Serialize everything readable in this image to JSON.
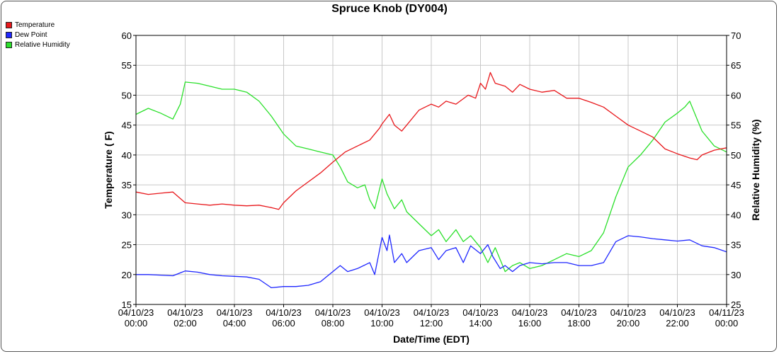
{
  "chart_data": {
    "type": "line",
    "title": "Spruce Knob (DY004)",
    "xlabel": "Date/Time (EDT)",
    "ylabel_left": "Temperature ( F)",
    "ylabel_right": "Relative Humidity (%)",
    "ylim_left": [
      15,
      60
    ],
    "ylim_right": [
      25,
      70
    ],
    "xlim_hours": [
      0,
      24
    ],
    "grid": true,
    "legend_position": "top-left",
    "x_ticks": [
      {
        "date": "04/10/23",
        "time": "00:00"
      },
      {
        "date": "04/10/23",
        "time": "02:00"
      },
      {
        "date": "04/10/23",
        "time": "04:00"
      },
      {
        "date": "04/10/23",
        "time": "06:00"
      },
      {
        "date": "04/10/23",
        "time": "08:00"
      },
      {
        "date": "04/10/23",
        "time": "10:00"
      },
      {
        "date": "04/10/23",
        "time": "12:00"
      },
      {
        "date": "04/10/23",
        "time": "14:00"
      },
      {
        "date": "04/10/23",
        "time": "16:00"
      },
      {
        "date": "04/10/23",
        "time": "18:00"
      },
      {
        "date": "04/10/23",
        "time": "20:00"
      },
      {
        "date": "04/10/23",
        "time": "22:00"
      },
      {
        "date": "04/11/23",
        "time": "00:00"
      }
    ],
    "y_ticks_left": [
      "15",
      "20",
      "25",
      "30",
      "35",
      "40",
      "45",
      "50",
      "55",
      "60"
    ],
    "y_ticks_right": [
      "25",
      "30",
      "35",
      "40",
      "45",
      "50",
      "55",
      "60",
      "65",
      "70"
    ],
    "series": [
      {
        "name": "Temperature",
        "color": "#e8171b",
        "axis": "left",
        "points": [
          [
            0,
            33.8
          ],
          [
            0.5,
            33.4
          ],
          [
            1,
            33.6
          ],
          [
            1.5,
            33.8
          ],
          [
            2,
            32.0
          ],
          [
            2.5,
            31.8
          ],
          [
            3,
            31.6
          ],
          [
            3.5,
            31.8
          ],
          [
            4,
            31.6
          ],
          [
            4.5,
            31.5
          ],
          [
            5,
            31.6
          ],
          [
            5.5,
            31.2
          ],
          [
            5.8,
            30.9
          ],
          [
            6,
            32.0
          ],
          [
            6.5,
            34.0
          ],
          [
            7,
            35.5
          ],
          [
            7.5,
            37.0
          ],
          [
            8,
            38.8
          ],
          [
            8.5,
            40.5
          ],
          [
            9,
            41.5
          ],
          [
            9.5,
            42.5
          ],
          [
            9.9,
            44.5
          ],
          [
            10,
            45.2
          ],
          [
            10.3,
            46.8
          ],
          [
            10.5,
            45.0
          ],
          [
            10.8,
            44.0
          ],
          [
            11,
            45.0
          ],
          [
            11.5,
            47.5
          ],
          [
            12,
            48.5
          ],
          [
            12.3,
            48.0
          ],
          [
            12.6,
            49.0
          ],
          [
            13,
            48.5
          ],
          [
            13.5,
            50.0
          ],
          [
            13.8,
            49.5
          ],
          [
            14,
            52.0
          ],
          [
            14.2,
            51.0
          ],
          [
            14.4,
            53.8
          ],
          [
            14.6,
            52.0
          ],
          [
            15,
            51.5
          ],
          [
            15.3,
            50.5
          ],
          [
            15.6,
            51.8
          ],
          [
            16,
            51.0
          ],
          [
            16.5,
            50.5
          ],
          [
            17,
            50.8
          ],
          [
            17.5,
            49.5
          ],
          [
            18,
            49.5
          ],
          [
            18.5,
            48.8
          ],
          [
            19,
            48.0
          ],
          [
            19.5,
            46.5
          ],
          [
            20,
            45.0
          ],
          [
            20.5,
            44.0
          ],
          [
            21,
            43.0
          ],
          [
            21.5,
            41.0
          ],
          [
            22,
            40.2
          ],
          [
            22.5,
            39.5
          ],
          [
            22.8,
            39.2
          ],
          [
            23,
            40.0
          ],
          [
            23.5,
            40.8
          ],
          [
            24,
            41.2
          ]
        ]
      },
      {
        "name": "Dew Point",
        "color": "#1f27ff",
        "axis": "left",
        "points": [
          [
            0,
            20.0
          ],
          [
            0.5,
            20.0
          ],
          [
            1,
            19.9
          ],
          [
            1.5,
            19.8
          ],
          [
            2,
            20.6
          ],
          [
            2.5,
            20.4
          ],
          [
            3,
            20.0
          ],
          [
            3.5,
            19.8
          ],
          [
            4,
            19.7
          ],
          [
            4.5,
            19.6
          ],
          [
            5,
            19.2
          ],
          [
            5.5,
            17.8
          ],
          [
            6,
            18.0
          ],
          [
            6.5,
            18.0
          ],
          [
            7,
            18.2
          ],
          [
            7.5,
            18.8
          ],
          [
            8,
            20.5
          ],
          [
            8.3,
            21.5
          ],
          [
            8.6,
            20.5
          ],
          [
            9,
            21.0
          ],
          [
            9.5,
            22.0
          ],
          [
            9.7,
            20.0
          ],
          [
            10,
            26.2
          ],
          [
            10.2,
            24.0
          ],
          [
            10.3,
            26.6
          ],
          [
            10.5,
            22.0
          ],
          [
            10.8,
            23.5
          ],
          [
            11,
            22.0
          ],
          [
            11.5,
            24.0
          ],
          [
            12,
            24.5
          ],
          [
            12.3,
            22.5
          ],
          [
            12.6,
            24.0
          ],
          [
            13,
            24.5
          ],
          [
            13.3,
            22.0
          ],
          [
            13.6,
            24.8
          ],
          [
            14,
            23.5
          ],
          [
            14.3,
            25.0
          ],
          [
            14.5,
            23.0
          ],
          [
            14.8,
            21.0
          ],
          [
            15,
            21.5
          ],
          [
            15.3,
            20.5
          ],
          [
            15.6,
            21.5
          ],
          [
            16,
            22.0
          ],
          [
            16.5,
            21.8
          ],
          [
            17,
            22.0
          ],
          [
            17.5,
            22.0
          ],
          [
            18,
            21.5
          ],
          [
            18.5,
            21.5
          ],
          [
            19,
            22.0
          ],
          [
            19.5,
            25.5
          ],
          [
            20,
            26.5
          ],
          [
            20.5,
            26.3
          ],
          [
            21,
            26.0
          ],
          [
            21.5,
            25.8
          ],
          [
            22,
            25.6
          ],
          [
            22.5,
            25.8
          ],
          [
            23,
            24.8
          ],
          [
            23.5,
            24.5
          ],
          [
            24,
            23.8
          ]
        ]
      },
      {
        "name": "Relative Humidity",
        "color": "#2be02b",
        "axis": "right",
        "points": [
          [
            0,
            56.8
          ],
          [
            0.5,
            57.8
          ],
          [
            1,
            57.0
          ],
          [
            1.5,
            56.0
          ],
          [
            1.8,
            58.5
          ],
          [
            2,
            62.2
          ],
          [
            2.5,
            62.0
          ],
          [
            3,
            61.5
          ],
          [
            3.5,
            61.0
          ],
          [
            4,
            61.0
          ],
          [
            4.5,
            60.5
          ],
          [
            5,
            59.0
          ],
          [
            5.5,
            56.5
          ],
          [
            6,
            53.5
          ],
          [
            6.5,
            51.5
          ],
          [
            7,
            51.0
          ],
          [
            7.5,
            50.5
          ],
          [
            8,
            50.0
          ],
          [
            8.3,
            48.0
          ],
          [
            8.6,
            45.5
          ],
          [
            9,
            44.5
          ],
          [
            9.3,
            45.0
          ],
          [
            9.5,
            42.5
          ],
          [
            9.7,
            41.0
          ],
          [
            10,
            46.0
          ],
          [
            10.2,
            43.5
          ],
          [
            10.5,
            41.0
          ],
          [
            10.8,
            42.5
          ],
          [
            11,
            40.5
          ],
          [
            11.5,
            38.5
          ],
          [
            12,
            36.5
          ],
          [
            12.3,
            37.5
          ],
          [
            12.6,
            35.5
          ],
          [
            13,
            37.5
          ],
          [
            13.3,
            35.5
          ],
          [
            13.6,
            36.5
          ],
          [
            14,
            34.5
          ],
          [
            14.3,
            32.0
          ],
          [
            14.6,
            34.5
          ],
          [
            15,
            30.5
          ],
          [
            15.3,
            31.5
          ],
          [
            15.6,
            32.0
          ],
          [
            16,
            31.0
          ],
          [
            16.5,
            31.5
          ],
          [
            17,
            32.5
          ],
          [
            17.5,
            33.5
          ],
          [
            18,
            33.0
          ],
          [
            18.5,
            34.0
          ],
          [
            19,
            37.0
          ],
          [
            19.5,
            43.0
          ],
          [
            20,
            48.0
          ],
          [
            20.5,
            50.0
          ],
          [
            21,
            52.5
          ],
          [
            21.5,
            55.5
          ],
          [
            22,
            57.0
          ],
          [
            22.3,
            58.0
          ],
          [
            22.5,
            59.0
          ],
          [
            22.8,
            56.0
          ],
          [
            23,
            54.0
          ],
          [
            23.5,
            51.5
          ],
          [
            24,
            50.5
          ]
        ]
      }
    ]
  }
}
